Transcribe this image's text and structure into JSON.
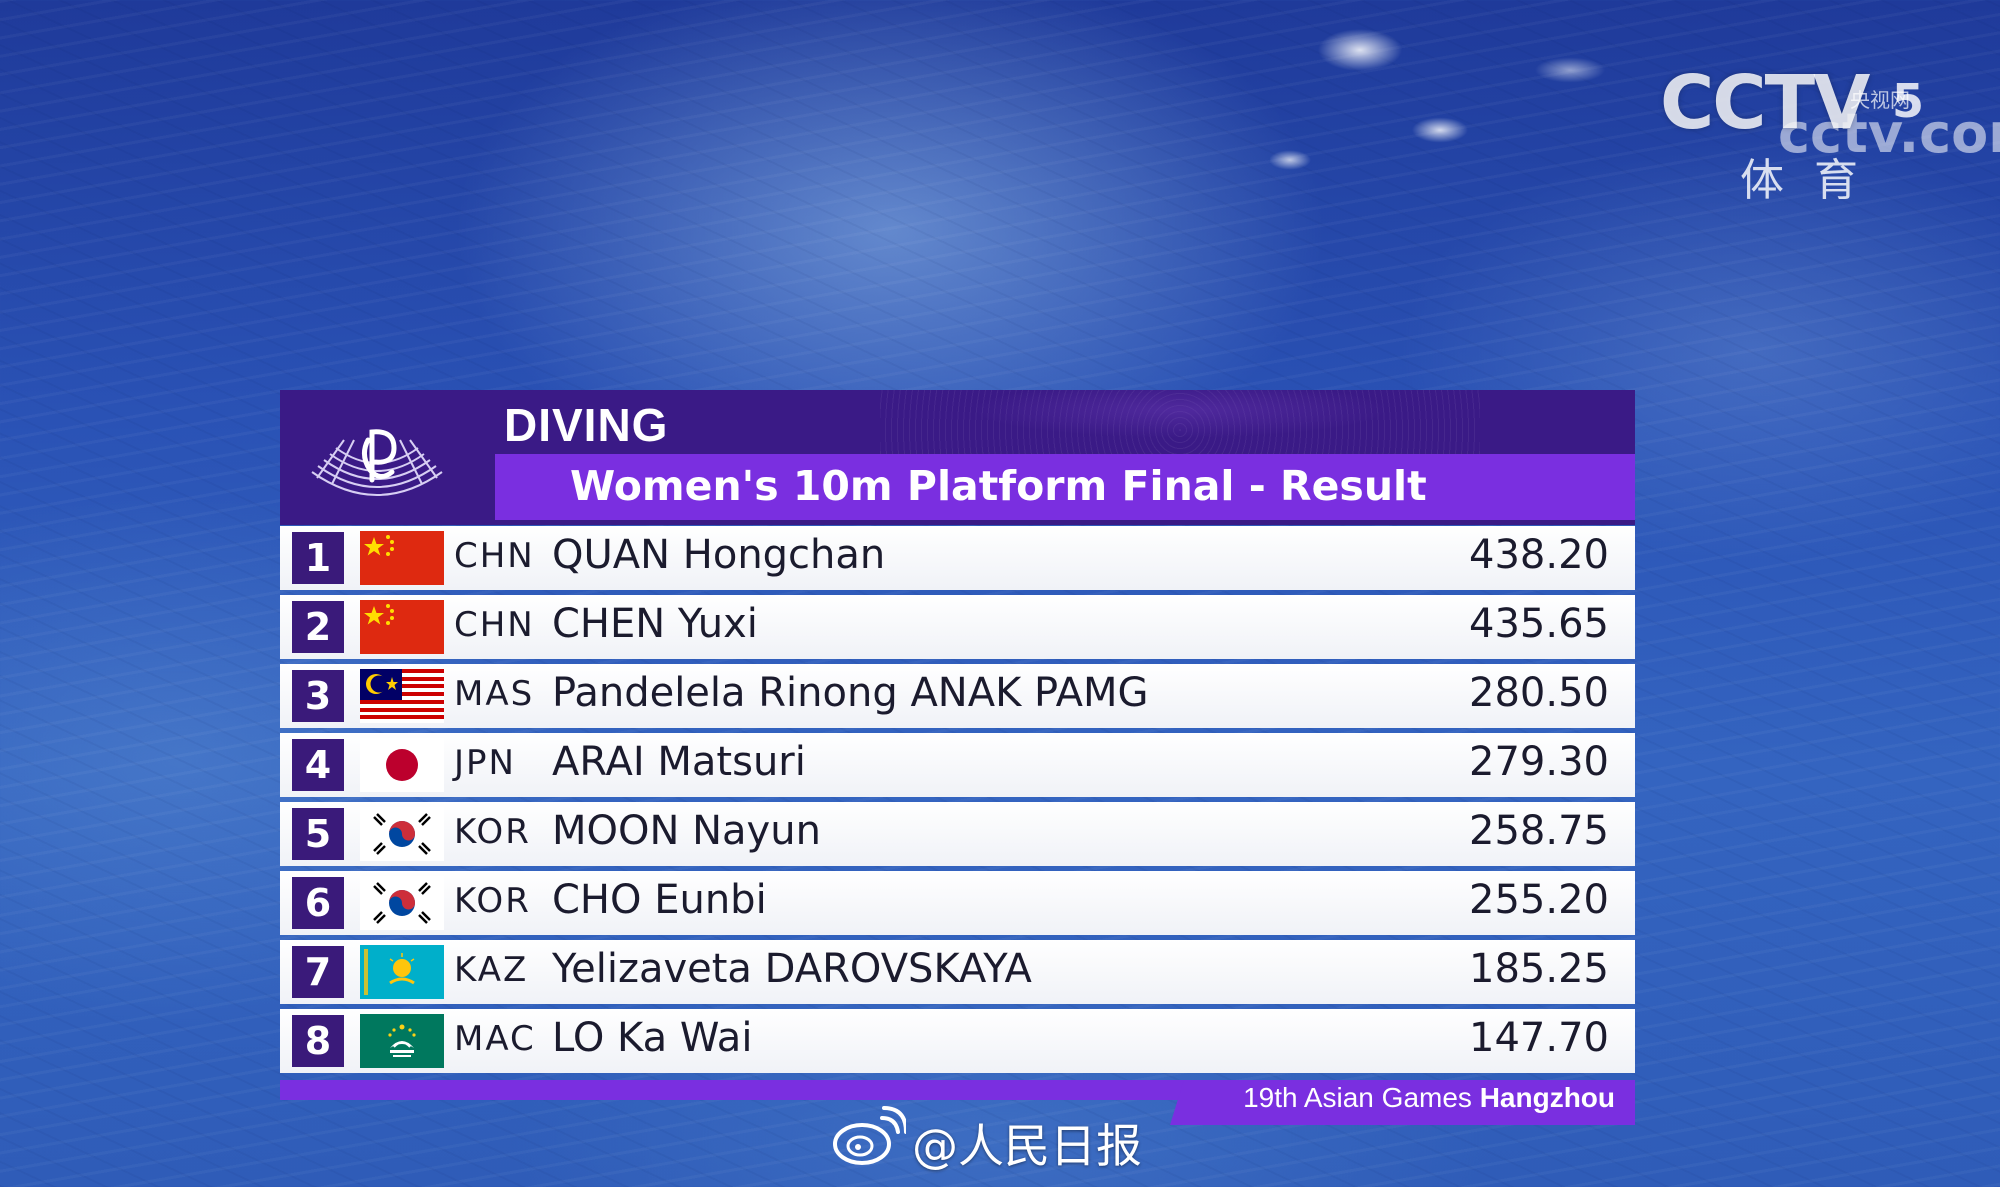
{
  "channel_logo": {
    "name": "CCTV",
    "number": "5",
    "site": "央视网",
    "domain": "cctv.com",
    "subtitle": "体育"
  },
  "panel": {
    "sport": "DIVING",
    "event": "Women's 10m Platform Final - Result",
    "footer_prefix": "19th Asian Games ",
    "footer_city": "Hangzhou",
    "colors": {
      "header": "#3a1a86",
      "accent": "#7a2fe0",
      "rank_box": "#3a1a7a"
    }
  },
  "results": [
    {
      "rank": "1",
      "noc": "CHN",
      "flag": "china-flag-icon",
      "athlete": "QUAN Hongchan",
      "score": "438.20"
    },
    {
      "rank": "2",
      "noc": "CHN",
      "flag": "china-flag-icon",
      "athlete": "CHEN Yuxi",
      "score": "435.65"
    },
    {
      "rank": "3",
      "noc": "MAS",
      "flag": "malaysia-flag-icon",
      "athlete": "Pandelela Rinong ANAK PAMG",
      "score": "280.50"
    },
    {
      "rank": "4",
      "noc": "JPN",
      "flag": "japan-flag-icon",
      "athlete": "ARAI Matsuri",
      "score": "279.30"
    },
    {
      "rank": "5",
      "noc": "KOR",
      "flag": "korea-flag-icon",
      "athlete": "MOON Nayun",
      "score": "258.75"
    },
    {
      "rank": "6",
      "noc": "KOR",
      "flag": "korea-flag-icon",
      "athlete": "CHO Eunbi",
      "score": "255.20"
    },
    {
      "rank": "7",
      "noc": "KAZ",
      "flag": "kazakhstan-flag-icon",
      "athlete": "Yelizaveta DAROVSKAYA",
      "score": "185.25"
    },
    {
      "rank": "8",
      "noc": "MAC",
      "flag": "macau-flag-icon",
      "athlete": "LO Ka Wai",
      "score": "147.70"
    }
  ],
  "watermark": {
    "icon": "weibo-icon",
    "text": "@人民日报"
  }
}
